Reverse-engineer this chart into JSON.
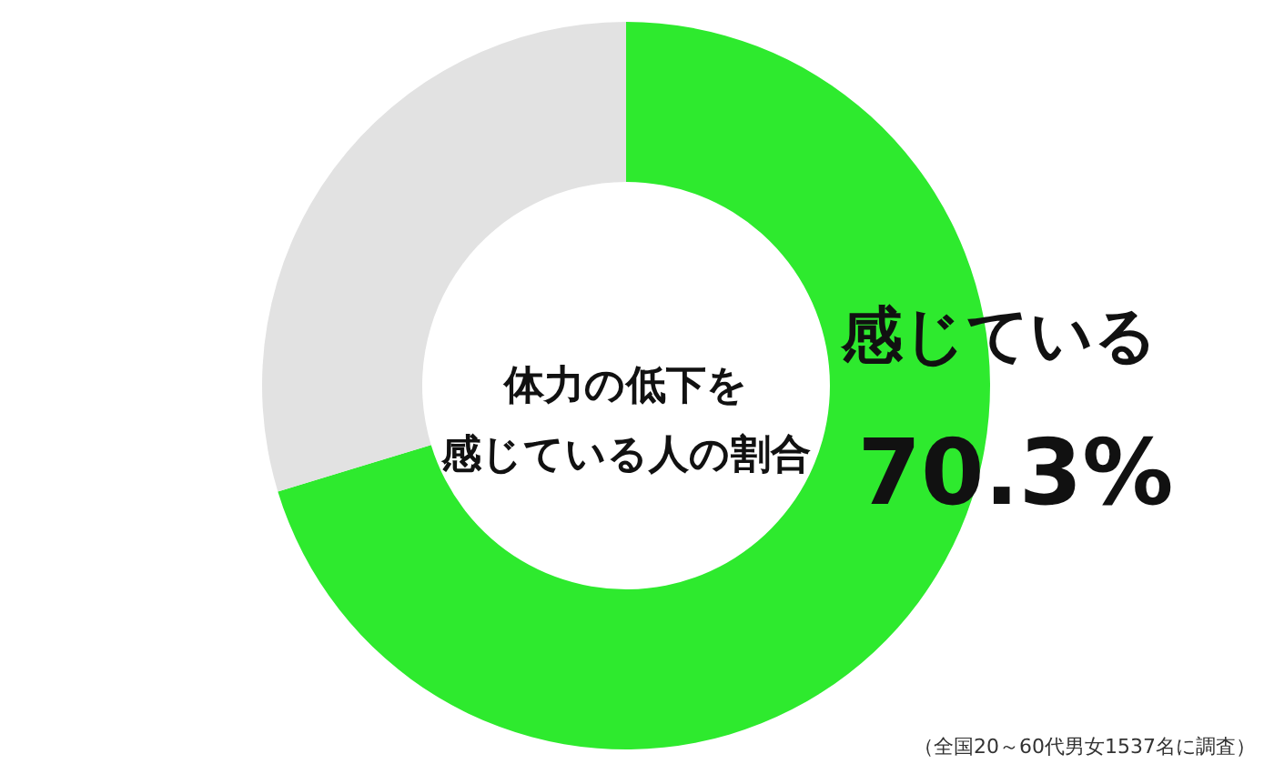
{
  "chart_data": {
    "type": "donut",
    "title": "体力の低下を感じている人の割合",
    "categories": [
      "感じている",
      null
    ],
    "values": [
      70.3,
      29.7
    ],
    "colors": [
      "#2eea2e",
      "#e2e2e2"
    ],
    "value_labels": [
      "70.3%",
      null
    ],
    "annotations": [
      "（全国20～60代男女1537名に調査）"
    ]
  }
}
